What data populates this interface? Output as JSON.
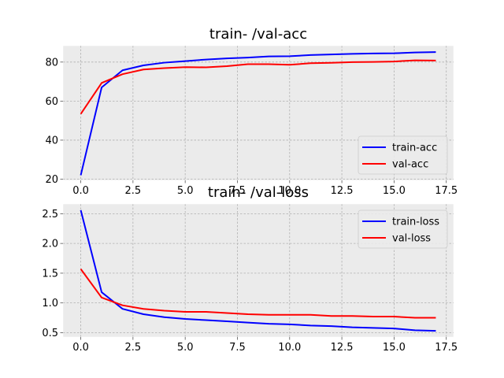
{
  "chart_data": [
    {
      "type": "line",
      "title": "train- /val-acc",
      "xlabel": "",
      "ylabel": "",
      "xlim": [
        -0.85,
        17.85
      ],
      "ylim": [
        19.4,
        88.4
      ],
      "grid": true,
      "legend_position": "lower-right",
      "xticks": [
        0.0,
        2.5,
        5.0,
        7.5,
        10.0,
        12.5,
        15.0,
        17.5
      ],
      "xtick_labels": [
        "0.0",
        "2.5",
        "5.0",
        "7.5",
        "10.0",
        "12.5",
        "15.0",
        "17.5"
      ],
      "yticks": [
        20,
        40,
        60,
        80
      ],
      "ytick_labels": [
        "20",
        "40",
        "60",
        "80"
      ],
      "x": [
        0,
        1,
        2,
        3,
        4,
        5,
        6,
        7,
        8,
        9,
        10,
        11,
        12,
        13,
        14,
        15,
        16,
        17
      ],
      "series": [
        {
          "name": "train-acc",
          "color": "#0000ff",
          "values": [
            22.0,
            67.0,
            75.8,
            78.3,
            79.7,
            80.5,
            81.3,
            81.9,
            82.3,
            82.9,
            83.0,
            83.6,
            83.9,
            84.2,
            84.4,
            84.5,
            84.9,
            85.1
          ]
        },
        {
          "name": "val-acc",
          "color": "#ff0000",
          "values": [
            53.4,
            69.3,
            73.8,
            76.2,
            76.9,
            77.4,
            77.3,
            77.9,
            78.9,
            78.9,
            78.6,
            79.4,
            79.6,
            80.0,
            80.1,
            80.3,
            80.9,
            80.8
          ]
        }
      ]
    },
    {
      "type": "line",
      "title": "train- /val-loss",
      "xlabel": "",
      "ylabel": "",
      "xlim": [
        -0.85,
        17.85
      ],
      "ylim": [
        0.426,
        2.664
      ],
      "grid": true,
      "legend_position": "upper-right",
      "xticks": [
        0.0,
        2.5,
        5.0,
        7.5,
        10.0,
        12.5,
        15.0,
        17.5
      ],
      "xtick_labels": [
        "0.0",
        "2.5",
        "5.0",
        "7.5",
        "10.0",
        "12.5",
        "15.0",
        "17.5"
      ],
      "yticks": [
        0.5,
        1.0,
        1.5,
        2.0,
        2.5
      ],
      "ytick_labels": [
        "0.5",
        "1.0",
        "1.5",
        "2.0",
        "2.5"
      ],
      "x": [
        0,
        1,
        2,
        3,
        4,
        5,
        6,
        7,
        8,
        9,
        10,
        11,
        12,
        13,
        14,
        15,
        16,
        17
      ],
      "series": [
        {
          "name": "train-loss",
          "color": "#0000ff",
          "values": [
            2.56,
            1.18,
            0.9,
            0.81,
            0.76,
            0.73,
            0.71,
            0.69,
            0.67,
            0.65,
            0.64,
            0.62,
            0.61,
            0.59,
            0.58,
            0.57,
            0.54,
            0.53
          ]
        },
        {
          "name": "val-loss",
          "color": "#ff0000",
          "values": [
            1.57,
            1.09,
            0.96,
            0.9,
            0.87,
            0.85,
            0.85,
            0.83,
            0.81,
            0.8,
            0.8,
            0.8,
            0.78,
            0.78,
            0.77,
            0.77,
            0.75,
            0.75
          ]
        }
      ]
    }
  ]
}
